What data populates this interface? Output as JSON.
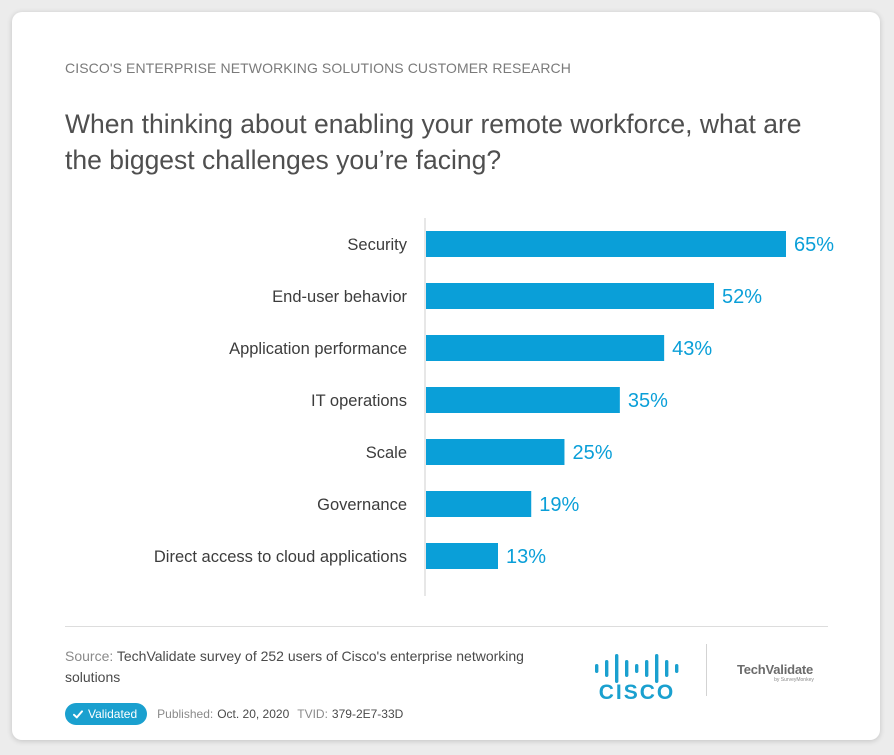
{
  "header": {
    "eyebrow": "CISCO'S ENTERPRISE NETWORKING SOLUTIONS CUSTOMER RESEARCH",
    "question": "When thinking about enabling your remote workforce, what are the biggest challenges you’re facing?"
  },
  "chart_data": {
    "type": "bar",
    "orientation": "horizontal",
    "title": "When thinking about enabling your remote workforce, what are the biggest challenges you’re facing?",
    "categories": [
      "Security",
      "End-user behavior",
      "Application performance",
      "IT operations",
      "Scale",
      "Governance",
      "Direct access to cloud applications"
    ],
    "values": [
      65,
      52,
      43,
      35,
      25,
      19,
      13
    ],
    "value_labels": [
      "65%",
      "52%",
      "43%",
      "35%",
      "25%",
      "19%",
      "13%"
    ],
    "unit": "%",
    "xlim": [
      0,
      65
    ],
    "grid": false,
    "bar_color": "#0a9fd8"
  },
  "footer": {
    "source_label": "Source:",
    "source_text": "TechValidate survey of 252 users of Cisco's enterprise networking solutions",
    "cisco_logo_text": "CISCO",
    "techvalidate_name": "TechValidate",
    "techvalidate_sub": "by SurveyMonkey",
    "validated_label": "Validated",
    "published_label": "Published:",
    "published_date": "Oct. 20, 2020",
    "tvid_label": "TVID:",
    "tvid_value": "379-2E7-33D"
  },
  "colors": {
    "accent": "#0a9fd8",
    "badge": "#1aa0cf",
    "text": "#4f4f4f"
  }
}
